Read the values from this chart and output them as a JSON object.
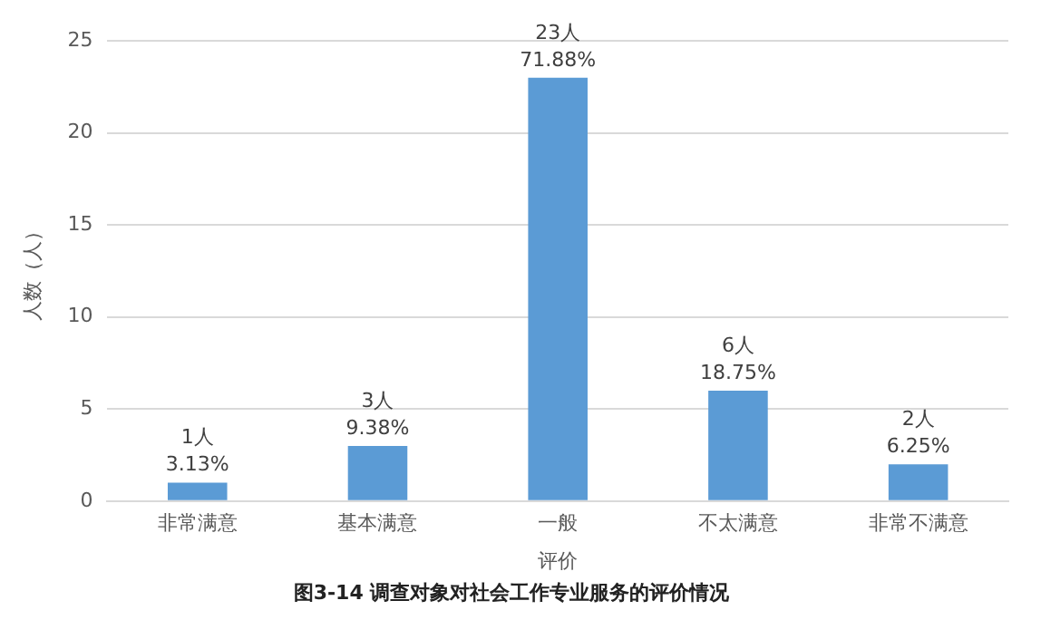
{
  "chart_data": {
    "type": "bar",
    "title": "图3-14 调查对象对社会工作专业服务的评价情况",
    "xlabel": "评价",
    "ylabel": "人数（人）",
    "categories": [
      "非常满意",
      "基本满意",
      "一般",
      "不太满意",
      "非常不满意"
    ],
    "values": [
      1,
      3,
      23,
      6,
      2
    ],
    "color": "#5b9bd5",
    "value_labels": [
      "1人\n3.13%",
      "3人\n9.38%",
      "23人\n71.88%",
      "6人\n18.75%",
      "2人\n6.25%"
    ],
    "ylim": [
      0,
      25
    ],
    "yticks": [
      0,
      5,
      10,
      15,
      20,
      25
    ],
    "grid": "y",
    "legend": false
  }
}
